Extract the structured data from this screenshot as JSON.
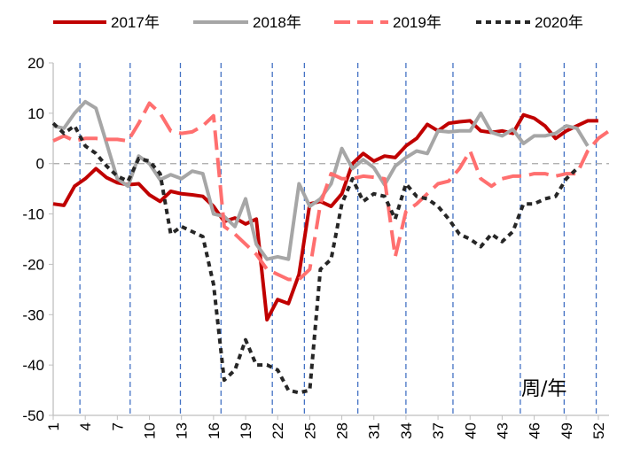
{
  "chart_data": {
    "type": "line",
    "title": "",
    "xlabel": "周/年",
    "ylabel": "",
    "ylim": [
      -50,
      20
    ],
    "yticks": [
      20,
      10,
      0,
      -10,
      -20,
      -30,
      -40,
      -50
    ],
    "xlim": [
      1,
      53
    ],
    "xticks": [
      1,
      4,
      7,
      10,
      13,
      16,
      19,
      22,
      25,
      28,
      31,
      34,
      37,
      40,
      43,
      46,
      49,
      52
    ],
    "reference_line_y": 0,
    "vertical_markers_x": [
      3.5,
      8.2,
      12.9,
      16.7,
      21.5,
      24.5,
      29.5,
      34,
      38.4,
      44.7,
      48.8,
      51.8
    ],
    "series": [
      {
        "name": "2017年",
        "color": "#c00000",
        "dash": "solid",
        "x": [
          1,
          2,
          3,
          4,
          5,
          6,
          7,
          8,
          9,
          10,
          11,
          12,
          13,
          14,
          15,
          16,
          17,
          18,
          19,
          20,
          21,
          22,
          23,
          24,
          25,
          26,
          27,
          28,
          29,
          30,
          31,
          32,
          33,
          34,
          35,
          36,
          37,
          38,
          39,
          40,
          41,
          42,
          43,
          44,
          45,
          46,
          47,
          48,
          49,
          50,
          51,
          52
        ],
        "values": [
          -8,
          -8.3,
          -4.5,
          -3,
          -1,
          -2.8,
          -3.8,
          -4.2,
          -4,
          -6.2,
          -7.5,
          -5.5,
          -6,
          -6.2,
          -6.5,
          -8.5,
          -11.5,
          -10.8,
          -12,
          -11,
          -31,
          -27,
          -27.8,
          -22,
          -8,
          -7.5,
          -8.5,
          -6,
          0,
          2,
          0.5,
          1.5,
          1.2,
          3.5,
          5,
          7.8,
          6.5,
          8,
          8.3,
          8.5,
          6.5,
          6.2,
          6.5,
          6,
          9.7,
          9,
          7.5,
          5,
          6.5,
          7.5,
          8.5,
          8.5
        ]
      },
      {
        "name": "2018年",
        "color": "#a6a6a6",
        "dash": "solid",
        "x": [
          1,
          2,
          3,
          4,
          5,
          6,
          7,
          8,
          9,
          10,
          11,
          12,
          13,
          14,
          15,
          16,
          17,
          18,
          19,
          20,
          21,
          22,
          23,
          24,
          25,
          26,
          27,
          28,
          29,
          30,
          31,
          32,
          33,
          34,
          35,
          36,
          37,
          38,
          39,
          40,
          41,
          42,
          43,
          44,
          45,
          46,
          47,
          48,
          49,
          50,
          51
        ],
        "values": [
          7.5,
          7,
          10,
          12.3,
          11,
          4,
          -3,
          -4.5,
          1.5,
          0,
          -3.2,
          -2.2,
          -3,
          -1.5,
          -2,
          -10,
          -10.5,
          -12.5,
          -7,
          -16,
          -19,
          -18.5,
          -19,
          -4,
          -8.5,
          -7,
          -4,
          3,
          -1,
          0.8,
          -0.8,
          -4.2,
          -0.5,
          1.2,
          2.5,
          2,
          6.5,
          6.3,
          6.5,
          6.5,
          10,
          6.2,
          5.5,
          6.8,
          4,
          5.5,
          5.5,
          6,
          7.5,
          7,
          3.5
        ]
      },
      {
        "name": "2019年",
        "color": "#ff6f6f",
        "dash": "long",
        "x": [
          1,
          2,
          3,
          4,
          5,
          6,
          7,
          8,
          9,
          10,
          11,
          12,
          13,
          14,
          15,
          16,
          17,
          18,
          19,
          20,
          21,
          22,
          23,
          24,
          25,
          26,
          27,
          28,
          29,
          30,
          31,
          32,
          33,
          34,
          35,
          36,
          37,
          38,
          39,
          40,
          41,
          42,
          43,
          44,
          45,
          46,
          47,
          48,
          49,
          50,
          51,
          52,
          53
        ],
        "values": [
          4.5,
          5.5,
          4.5,
          5,
          5,
          4.8,
          4.8,
          4.5,
          8,
          12,
          10,
          6.5,
          6,
          6.3,
          7.5,
          9.5,
          -12.5,
          -14,
          -16,
          -18,
          -21,
          -22,
          -23,
          -23,
          -21,
          -8,
          -2,
          -3,
          -3,
          -2.5,
          -2.7,
          -3,
          -18.5,
          -9.5,
          -8,
          -6,
          -4,
          -3.5,
          -1,
          2.5,
          -3,
          -4.5,
          -3,
          -2.5,
          -2.5,
          -2,
          -2,
          -2.5,
          -2,
          -2,
          2.5,
          5,
          6.5
        ]
      },
      {
        "name": "2020年",
        "color": "#262626",
        "dash": "short",
        "x": [
          1,
          2,
          3,
          4,
          5,
          6,
          7,
          8,
          9,
          10,
          11,
          12,
          13,
          14,
          15,
          16,
          17,
          18,
          19,
          20,
          21,
          22,
          23,
          24,
          25,
          26,
          27,
          28,
          29,
          30,
          31,
          32,
          33,
          34,
          35,
          36,
          37,
          38,
          39,
          40,
          41,
          42,
          43,
          44,
          45,
          46,
          47,
          48,
          49,
          50
        ],
        "values": [
          8,
          6,
          7.5,
          3.5,
          2,
          -0.5,
          -2.5,
          -3.5,
          1,
          0.5,
          -2,
          -14,
          -12.5,
          -13.5,
          -14.5,
          -24,
          -43,
          -41,
          -35,
          -40,
          -40,
          -41,
          -45,
          -45.5,
          -45,
          -21,
          -19,
          -8,
          -3,
          -7.5,
          -6,
          -6.5,
          -11,
          -4,
          -6.5,
          -7,
          -8.5,
          -11,
          -14,
          -15,
          -16.5,
          -14,
          -15.5,
          -13.5,
          -8,
          -8,
          -7,
          -6.5,
          -3,
          -1
        ]
      }
    ]
  }
}
